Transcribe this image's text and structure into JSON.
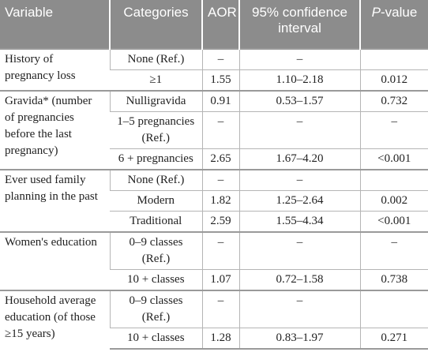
{
  "header": {
    "variable": "Variable",
    "categories": "Categories",
    "aor": "AOR",
    "ci": "95% confidence interval",
    "pvalue_italic": "P",
    "pvalue_rest": "-value"
  },
  "groups": [
    {
      "variable": "History of pregnancy loss",
      "rows": [
        {
          "category": "None (Ref.)",
          "aor": "–",
          "ci": "–",
          "p": ""
        },
        {
          "category": "≥1",
          "aor": "1.55",
          "ci": "1.10–2.18",
          "p": "0.012"
        }
      ]
    },
    {
      "variable": "Gravida* (number of pregnancies before the last pregnancy)",
      "rows": [
        {
          "category": "Nulligravida",
          "aor": "0.91",
          "ci": "0.53–1.57",
          "p": "0.732"
        },
        {
          "category": "1–5 pregnancies (Ref.)",
          "aor": "–",
          "ci": "–",
          "p": "–"
        },
        {
          "category": "6 + pregnancies",
          "aor": "2.65",
          "ci": "1.67–4.20",
          "p": "<0.001"
        }
      ]
    },
    {
      "variable": "Ever used family planning in the past",
      "rows": [
        {
          "category": "None (Ref.)",
          "aor": "–",
          "ci": "–",
          "p": ""
        },
        {
          "category": "Modern",
          "aor": "1.82",
          "ci": "1.25–2.64",
          "p": "0.002"
        },
        {
          "category": "Traditional",
          "aor": "2.59",
          "ci": "1.55–4.34",
          "p": "<0.001"
        }
      ]
    },
    {
      "variable": "Women's education",
      "rows": [
        {
          "category": "0–9 classes (Ref.)",
          "aor": "–",
          "ci": "–",
          "p": "–"
        },
        {
          "category": "10 + classes",
          "aor": "1.07",
          "ci": "0.72–1.58",
          "p": "0.738"
        }
      ]
    },
    {
      "variable": "Household average education (of those ≥15 years)",
      "rows": [
        {
          "category": "0–9 classes (Ref.)",
          "aor": "–",
          "ci": "–",
          "p": ""
        },
        {
          "category": "10 + classes",
          "aor": "1.28",
          "ci": "0.83–1.97",
          "p": "0.271"
        }
      ]
    }
  ]
}
